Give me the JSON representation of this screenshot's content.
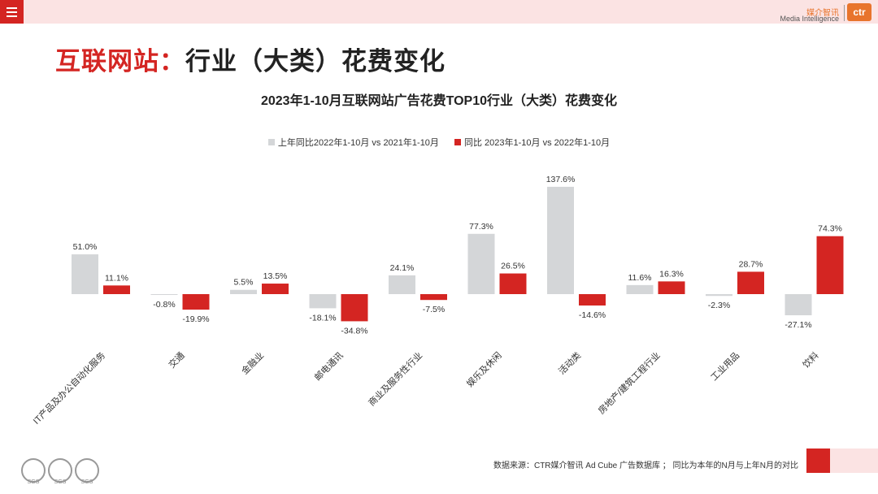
{
  "header": {
    "menu_icon": "hamburger-menu-icon",
    "logo_cn": "媒介智讯",
    "logo_en": "Media Intelligence",
    "logo_mark": "ctr"
  },
  "page_title_red": "互联网站：",
  "page_title_rest": "行业（大类）花费变化",
  "chart_data": {
    "type": "bar",
    "title": "2023年1-10月互联网站广告花费TOP10行业（大类）花费变化",
    "categories": [
      "IT产品及办公自动化服务",
      "交通",
      "金融业",
      "邮电通讯",
      "商业及服务性行业",
      "娱乐及休闲",
      "活动类",
      "房地产/建筑工程行业",
      "工业用品",
      "饮料"
    ],
    "series": [
      {
        "name": "上年同比2022年1-10月  vs 2021年1-10月",
        "color": "#d4d6d8",
        "values": [
          51.0,
          -0.8,
          5.5,
          -18.1,
          24.1,
          77.3,
          137.6,
          11.6,
          -2.3,
          -27.1
        ],
        "labels": [
          "51.0%",
          "-0.8%",
          "5.5%",
          "-18.1%",
          "24.1%",
          "77.3%",
          "137.6%",
          "11.6%",
          "-2.3%",
          "-27.1%"
        ]
      },
      {
        "name": "同比 2023年1-10月  vs 2022年1-10月",
        "color": "#d42522",
        "values": [
          11.1,
          -19.9,
          13.5,
          -34.8,
          -7.5,
          26.5,
          -14.6,
          16.3,
          28.7,
          74.3
        ],
        "labels": [
          "11.1%",
          "-19.9%",
          "13.5%",
          "-34.8%",
          "-7.5%",
          "26.5%",
          "-14.6%",
          "16.3%",
          "28.7%",
          "74.3%"
        ]
      }
    ],
    "ylim": [
      -40,
      140
    ],
    "grid": false,
    "legend_position": "top"
  },
  "footer": {
    "badges": [
      "SGS",
      "SGS",
      "SGS"
    ],
    "source": "数据来源：CTR媒介智讯 Ad Cube 广告数据库 ； 同比为本年的N月与上年N月的对比"
  }
}
